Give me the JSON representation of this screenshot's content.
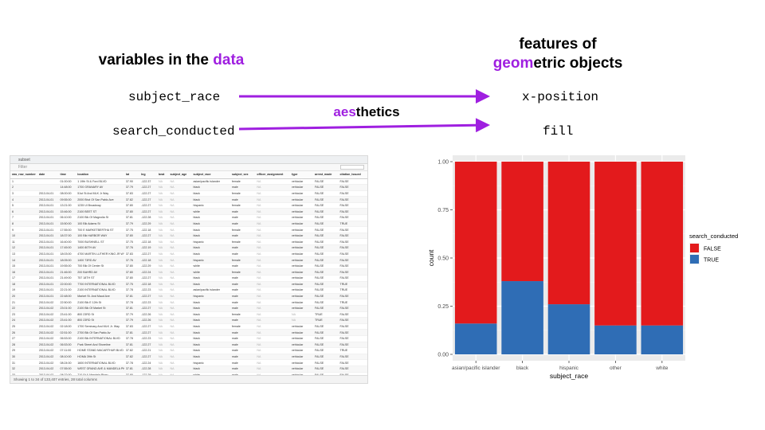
{
  "left_heading": {
    "before": "variables in the ",
    "highlight": "data"
  },
  "right_heading": {
    "line1": "features of",
    "highlight": "geom",
    "rest": "etric objects"
  },
  "variables": [
    "subject_race",
    "search_conducted"
  ],
  "aesthetics_list": [
    "x-position",
    "fill"
  ],
  "aesthetics_label": {
    "highlight": "aes",
    "rest": "thetics"
  },
  "colors": {
    "purple": "#9f1fe0",
    "false_fill": "#e31a1c",
    "true_fill": "#2f6db5",
    "panel": "#ebebeb"
  },
  "table": {
    "tab_label": "subset",
    "filter_label": "Filter",
    "columns": [
      "raw_row_number",
      "date",
      "time",
      "location",
      "lat",
      "lng",
      "beat",
      "subject_age",
      "subject_race",
      "subject_sex",
      "officer_assignment",
      "type",
      "arrest_made",
      "citation_issued"
    ],
    "rows": [
      [
        "1",
        "",
        "01:00:00",
        "1 19th St & Ford BLVD",
        "37.90",
        "-122.37",
        "NA",
        "NA",
        "asian/pacific islander",
        "female",
        "NA",
        "vehicular",
        "FALSE",
        "FALSE"
      ],
      [
        "2",
        "",
        "14:48:00",
        "1700 GRANARY AV",
        "37.79",
        "-122.27",
        "NA",
        "NA",
        "black",
        "male",
        "NA",
        "vehicular",
        "FALSE",
        "FALSE"
      ],
      [
        "3",
        "2013-04-01",
        "08:00:00",
        "51st St And MLK Jr Way",
        "37.83",
        "-122.27",
        "NA",
        "NA",
        "black",
        "female",
        "NA",
        "vehicular",
        "FALSE",
        "FALSE"
      ],
      [
        "4",
        "2013-04-01",
        "09:55:00",
        "2000 Blvd Of San Pablo Ave",
        "37.82",
        "-122.27",
        "NA",
        "NA",
        "black",
        "male",
        "NA",
        "vehicular",
        "FALSE",
        "FALSE"
      ],
      [
        "5",
        "2013-04-01",
        "13:21:00",
        "1235 Ul Broadway",
        "37.80",
        "-122.27",
        "NA",
        "NA",
        "hispanic",
        "female",
        "NA",
        "vehicular",
        "FALSE",
        "FALSE"
      ],
      [
        "6",
        "2013-04-01",
        "15:46:00",
        "2100 BEET ST",
        "37.80",
        "-122.27",
        "NA",
        "NA",
        "white",
        "male",
        "NA",
        "vehicular",
        "FALSE",
        "FALSE"
      ],
      [
        "7",
        "2013-04-01",
        "06:10:00",
        "2100 Blk Of Magnolia St",
        "37.81",
        "-122.28",
        "NA",
        "NA",
        "black",
        "male",
        "NA",
        "vehicular",
        "FALSE",
        "FALSE"
      ],
      [
        "8",
        "2013-04-01",
        "15:50:00",
        "100 Blk Adams St",
        "37.79",
        "-122.29",
        "NA",
        "NA",
        "black",
        "male",
        "NA",
        "vehicular",
        "FALSE",
        "TRUE"
      ],
      [
        "9",
        "2013-04-01",
        "17:55:00",
        "700 E MARKETBERTHA ST",
        "37.75",
        "-122.18",
        "NA",
        "NA",
        "black",
        "female",
        "NA",
        "vehicular",
        "FALSE",
        "FALSE"
      ],
      [
        "10",
        "2013-04-01",
        "18:37:00",
        "100 Blk HARBOR WAY",
        "37.80",
        "-122.27",
        "NA",
        "NA",
        "black",
        "male",
        "NA",
        "vehicular",
        "FALSE",
        "FALSE"
      ],
      [
        "11",
        "2013-04-01",
        "16:40:00",
        "7000 BUSHNELL ST",
        "37.75",
        "-122.18",
        "NA",
        "NA",
        "hispanic",
        "female",
        "NA",
        "vehicular",
        "FALSE",
        "FALSE"
      ],
      [
        "12",
        "2013-04-01",
        "17:45:00",
        "1400 80TH AV",
        "37.76",
        "-122.19",
        "NA",
        "NA",
        "black",
        "male",
        "NA",
        "vehicular",
        "FALSE",
        "FALSE"
      ],
      [
        "13",
        "2013-04-01",
        "18:03:00",
        "4700 MARTIN LUTHER KING JR WY",
        "37.83",
        "-122.27",
        "NA",
        "NA",
        "black",
        "male",
        "NA",
        "vehicular",
        "FALSE",
        "FALSE"
      ],
      [
        "14",
        "2013-04-01",
        "18:05:00",
        "1400 73RD AV",
        "37.76",
        "-122.18",
        "NA",
        "NA",
        "hispanic",
        "female",
        "NA",
        "vehicular",
        "FALSE",
        "FALSE"
      ],
      [
        "15",
        "2013-04-01",
        "19:55:00",
        "700 Blk Of Center St",
        "37.80",
        "-122.29",
        "NA",
        "NA",
        "white",
        "male",
        "NA",
        "vehicular",
        "FALSE",
        "FALSE"
      ],
      [
        "16",
        "2013-04-01",
        "21:46:00",
        "200 BAHRD AV",
        "37.80",
        "-122.24",
        "NA",
        "NA",
        "white",
        "female",
        "NA",
        "vehicular",
        "FALSE",
        "FALSE"
      ],
      [
        "17",
        "2013-04-01",
        "21:49:00",
        "757 18TH ST",
        "37.80",
        "-122.27",
        "NA",
        "NA",
        "black",
        "male",
        "NA",
        "vehicular",
        "FALSE",
        "FALSE"
      ],
      [
        "18",
        "2013-04-01",
        "22:00:00",
        "7700 INTERNATIONAL BLVD",
        "37.75",
        "-122.18",
        "NA",
        "NA",
        "black",
        "male",
        "NA",
        "vehicular",
        "FALSE",
        "TRUE"
      ],
      [
        "19",
        "2013-04-01",
        "22:21:00",
        "2100 INTERNATIONAL BLVD",
        "37.78",
        "-122.23",
        "NA",
        "NA",
        "asian/pacific islander",
        "male",
        "NA",
        "vehicular",
        "FALSE",
        "TRUE"
      ],
      [
        "20",
        "2013-04-01",
        "22:48:00",
        "Market St. And Maud Ave",
        "37.81",
        "-122.27",
        "NA",
        "NA",
        "hispanic",
        "male",
        "NA",
        "vehicular",
        "FALSE",
        "FALSE"
      ],
      [
        "21",
        "2013-04-02",
        "22:50:00",
        "2100 Blk E 12th St",
        "37.78",
        "-122.23",
        "NA",
        "NA",
        "black",
        "male",
        "NA",
        "vehicular",
        "FALSE",
        "TRUE"
      ],
      [
        "22",
        "2013-04-02",
        "23:01:00",
        "2100 Blk Of Market St",
        "37.81",
        "-122.27",
        "NA",
        "NA",
        "black",
        "male",
        "NA",
        "vehicular",
        "FALSE",
        "FALSE"
      ],
      [
        "23",
        "2013-04-02",
        "23:41:00",
        "800 23RD St",
        "37.79",
        "-122.26",
        "NA",
        "NA",
        "black",
        "female",
        "NA",
        "NA",
        "TRUE",
        "FALSE"
      ],
      [
        "24",
        "2013-04-02",
        "23:41:00",
        "800 23RD St",
        "37.79",
        "-122.26",
        "NA",
        "NA",
        "black",
        "male",
        "NA",
        "NA",
        "TRUE",
        "FALSE"
      ],
      [
        "25",
        "2013-04-02",
        "02:18:00",
        "1700 Seminary And MLK Jr. Way",
        "37.83",
        "-122.27",
        "NA",
        "NA",
        "black",
        "female",
        "NA",
        "vehicular",
        "FALSE",
        "FALSE"
      ],
      [
        "26",
        "2013-04-02",
        "02:51:00",
        "2700 Blk Of San Pablo Av",
        "37.81",
        "-122.27",
        "NA",
        "NA",
        "black",
        "male",
        "NA",
        "vehicular",
        "FALSE",
        "FALSE"
      ],
      [
        "27",
        "2013-04-02",
        "06:53:00",
        "2100 Blk INTERNATIONAL BLVD",
        "37.78",
        "-122.23",
        "NA",
        "NA",
        "black",
        "male",
        "NA",
        "vehicular",
        "FALSE",
        "FALSE"
      ],
      [
        "28",
        "2013-04-02",
        "06:53:00",
        "Park Street And Shoreline",
        "37.81",
        "-122.27",
        "NA",
        "NA",
        "black",
        "male",
        "NA",
        "vehicular",
        "FALSE",
        "FALSE"
      ],
      [
        "29",
        "2013-04-02",
        "07:11:00",
        "HOME STAND MACARTHUR BLVD",
        "37.82",
        "-122.21",
        "NA",
        "NA",
        "black",
        "male",
        "NA",
        "vehicular",
        "FALSE",
        "TRUE"
      ],
      [
        "30",
        "2013-04-02",
        "08:10:00",
        "HOMA 39th St",
        "37.82",
        "-122.27",
        "NA",
        "NA",
        "black",
        "male",
        "NA",
        "vehicular",
        "FALSE",
        "FALSE"
      ],
      [
        "31",
        "2013-04-02",
        "08:24:00",
        "1600 INTERNATIONAL BLVD",
        "37.78",
        "-122.24",
        "NA",
        "NA",
        "hispanic",
        "male",
        "NA",
        "vehicular",
        "FALSE",
        "FALSE"
      ],
      [
        "32",
        "2013-04-02",
        "07:55:00",
        "WEST GRAND AVE & MANDELA PKWY",
        "37.81",
        "-122.28",
        "NA",
        "NA",
        "black",
        "male",
        "NA",
        "vehicular",
        "FALSE",
        "FALSE"
      ],
      [
        "33",
        "2013-04-02",
        "08:22:00",
        "710 St & Mandela Pkwy",
        "37.80",
        "-122.29",
        "NA",
        "NA",
        "white",
        "male",
        "NA",
        "vehicular",
        "FALSE",
        "FALSE"
      ],
      [
        "34",
        "2013-04-02",
        "08:30:00",
        "4100 TELEGRAPH AV",
        "37.83",
        "-122.26",
        "NA",
        "NA",
        "white",
        "male",
        "NA",
        "vehicular",
        "FALSE",
        "FALSE"
      ]
    ],
    "status": "Showing 1 to 34 of 133,407 entries, 28 total columns"
  },
  "chart_data": {
    "type": "bar",
    "position": "fill",
    "categories": [
      "asian/pacific islander",
      "black",
      "hispanic",
      "other",
      "white"
    ],
    "series": [
      {
        "name": "FALSE",
        "values": [
          0.84,
          0.62,
          0.74,
          0.85,
          0.85
        ]
      },
      {
        "name": "TRUE",
        "values": [
          0.16,
          0.38,
          0.26,
          0.15,
          0.15
        ]
      }
    ],
    "xlabel": "subject_race",
    "ylabel": "count",
    "ylim": [
      0,
      1
    ],
    "yticks": [
      "0.00",
      "0.25",
      "0.50",
      "0.75",
      "1.00"
    ],
    "legend": {
      "title": "search_conducted",
      "placement": "right"
    },
    "grid": true
  }
}
